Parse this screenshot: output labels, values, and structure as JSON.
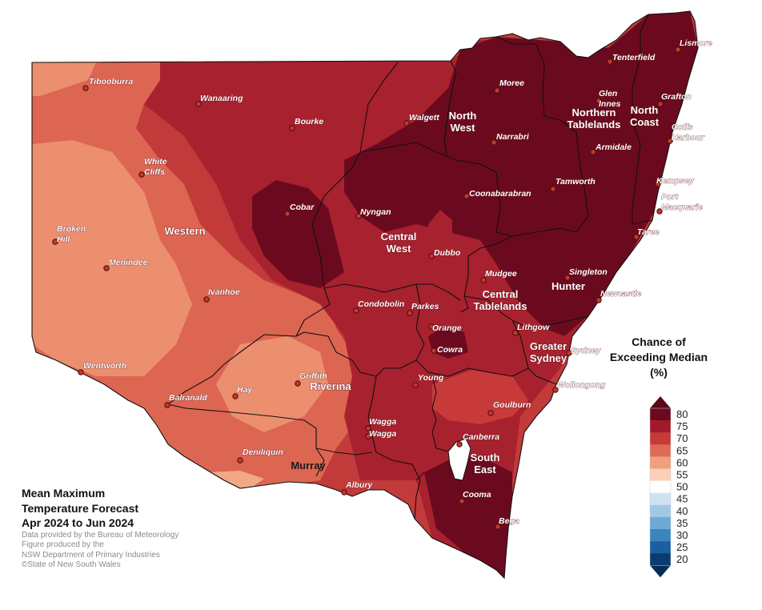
{
  "title": {
    "lines": [
      "Mean Maximum",
      "Temperature Forecast",
      "Apr 2024 to Jun 2024"
    ]
  },
  "credits": [
    "Data provided by the Bureau of Meteorology",
    "Figure produced by the",
    "NSW Department of Primary Industries",
    "©State of New South Wales"
  ],
  "legend": {
    "title_lines": [
      "Chance of",
      "Exceeding Median",
      "(%)"
    ],
    "ticks": [
      "80",
      "75",
      "70",
      "65",
      "60",
      "55",
      "50",
      "45",
      "40",
      "35",
      "30",
      "25",
      "20"
    ],
    "colors": [
      "#6b0a1f",
      "#a3192b",
      "#c83a3a",
      "#de6b57",
      "#f0a07e",
      "#fad0b8",
      "#ffffff",
      "#cfe2f1",
      "#a2c9e4",
      "#6eaad4",
      "#3b85be",
      "#1a5fa0",
      "#0a3b72"
    ],
    "top_cap_color": "#5a0818",
    "bottom_cap_color": "#082c58"
  },
  "regions": [
    {
      "name": "Western",
      "lines": [
        "Western"
      ]
    },
    {
      "name": "North West",
      "lines": [
        "North",
        "West"
      ]
    },
    {
      "name": "Northern Tablelands",
      "lines": [
        "Northern",
        "Tablelands"
      ]
    },
    {
      "name": "North Coast",
      "lines": [
        "North",
        "Coast"
      ]
    },
    {
      "name": "Central West",
      "lines": [
        "Central",
        "West"
      ]
    },
    {
      "name": "Hunter",
      "lines": [
        "Hunter"
      ]
    },
    {
      "name": "Central Tablelands",
      "lines": [
        "Central",
        "Tablelands"
      ]
    },
    {
      "name": "Greater Sydney",
      "lines": [
        "Greater",
        "Sydney"
      ]
    },
    {
      "name": "Riverina",
      "lines": [
        "Riverina"
      ]
    },
    {
      "name": "Murray",
      "lines": [
        "Murray"
      ]
    },
    {
      "name": "South East",
      "lines": [
        "South",
        "East"
      ]
    }
  ],
  "towns": [
    {
      "lines": [
        "Tibooburra"
      ]
    },
    {
      "lines": [
        "Wanaaring"
      ]
    },
    {
      "lines": [
        "Bourke"
      ]
    },
    {
      "lines": [
        "White",
        "Cliffs"
      ]
    },
    {
      "lines": [
        "Broken",
        "Hill"
      ]
    },
    {
      "lines": [
        "Menindee"
      ]
    },
    {
      "lines": [
        "Cobar"
      ]
    },
    {
      "lines": [
        "Ivanhoe"
      ]
    },
    {
      "lines": [
        "Wentworth"
      ]
    },
    {
      "lines": [
        "Balranald"
      ]
    },
    {
      "lines": [
        "Hay"
      ]
    },
    {
      "lines": [
        "Deniliquin"
      ]
    },
    {
      "lines": [
        "Griffith"
      ]
    },
    {
      "lines": [
        "Albury"
      ]
    },
    {
      "lines": [
        "Wagga"
      ]
    },
    {
      "lines": [
        "Wagga"
      ]
    },
    {
      "lines": [
        "Young"
      ]
    },
    {
      "lines": [
        "Condobolin"
      ]
    },
    {
      "lines": [
        "Parkes"
      ]
    },
    {
      "lines": [
        "Nyngan"
      ]
    },
    {
      "lines": [
        "Dubbo"
      ]
    },
    {
      "lines": [
        "Orange"
      ]
    },
    {
      "lines": [
        "Cowra"
      ]
    },
    {
      "lines": [
        "Mudgee"
      ]
    },
    {
      "lines": [
        "Lithgow"
      ]
    },
    {
      "lines": [
        "Walgett"
      ]
    },
    {
      "lines": [
        "Moree"
      ]
    },
    {
      "lines": [
        "Narrabri"
      ]
    },
    {
      "lines": [
        "Coonabarabran"
      ]
    },
    {
      "lines": [
        "Tamworth"
      ]
    },
    {
      "lines": [
        "Armidale"
      ]
    },
    {
      "lines": [
        "Glen",
        "Innes"
      ]
    },
    {
      "lines": [
        "Tenterfield"
      ]
    },
    {
      "lines": [
        "Lismore"
      ]
    },
    {
      "lines": [
        "Grafton"
      ]
    },
    {
      "lines": [
        "Coffs",
        "Harbour"
      ]
    },
    {
      "lines": [
        "Kempsey"
      ]
    },
    {
      "lines": [
        "Port",
        "Macquarie"
      ]
    },
    {
      "lines": [
        "Taree"
      ]
    },
    {
      "lines": [
        "Singleton"
      ]
    },
    {
      "lines": [
        "Newcastle"
      ]
    },
    {
      "lines": [
        "Sydney"
      ]
    },
    {
      "lines": [
        "Wollongong"
      ]
    },
    {
      "lines": [
        "Goulburn"
      ]
    },
    {
      "lines": [
        "Canberra"
      ]
    },
    {
      "lines": [
        "Cooma"
      ]
    },
    {
      "lines": [
        "Bega"
      ]
    }
  ]
}
